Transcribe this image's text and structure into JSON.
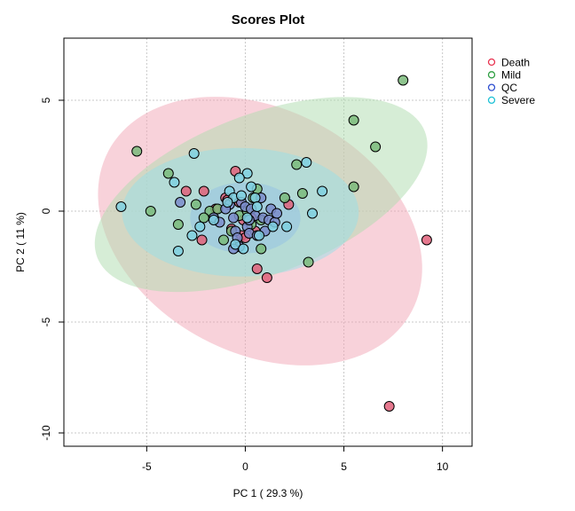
{
  "chart_data": {
    "type": "scatter",
    "title": "Scores Plot",
    "xlabel": "PC 1 ( 29.3 %)",
    "ylabel": "PC 2 ( 11 %)",
    "xlim": [
      -9.2,
      11.5
    ],
    "ylim": [
      -10.6,
      7.8
    ],
    "xticks": [
      -5,
      0,
      5,
      10
    ],
    "yticks": [
      -10,
      -5,
      0,
      5
    ],
    "grid": true,
    "legend_position": "top-right",
    "series": [
      {
        "name": "Death",
        "color": "#e8324f",
        "fill": "#e0607a",
        "ellipse_fill": "#f2a6b6",
        "ellipse": {
          "cx": 0.75,
          "cy": -0.9,
          "rx": 8.7,
          "ry": 5.5,
          "angle_deg": 27.8
        },
        "points": [
          [
            -0.5,
            1.8
          ],
          [
            -2.1,
            0.9
          ],
          [
            -3.0,
            0.9
          ],
          [
            -0.3,
            0.4
          ],
          [
            -1.0,
            0.6
          ],
          [
            0.3,
            -0.3
          ],
          [
            -0.2,
            -1.1
          ],
          [
            -0.7,
            -0.8
          ],
          [
            0.0,
            -1.2
          ],
          [
            -2.2,
            -1.3
          ],
          [
            0.6,
            -2.6
          ],
          [
            1.1,
            -3.0
          ],
          [
            2.2,
            0.3
          ],
          [
            -0.9,
            0.5
          ],
          [
            9.2,
            -1.3
          ],
          [
            7.3,
            -8.8
          ],
          [
            -1.5,
            0.1
          ],
          [
            -0.1,
            -0.4
          ],
          [
            0.5,
            -0.9
          ]
        ]
      },
      {
        "name": "Mild",
        "color": "#2a9d3e",
        "fill": "#7aba7a",
        "ellipse_fill": "#aedcae",
        "ellipse": {
          "cx": 0.8,
          "cy": 0.75,
          "rx": 8.9,
          "ry": 3.6,
          "angle_deg": -21
        },
        "points": [
          [
            -5.5,
            2.7
          ],
          [
            -3.9,
            1.7
          ],
          [
            -4.8,
            0.0
          ],
          [
            -3.4,
            -0.6
          ],
          [
            -2.5,
            0.3
          ],
          [
            -1.8,
            0.0
          ],
          [
            -2.1,
            -0.3
          ],
          [
            -1.4,
            0.1
          ],
          [
            -1.1,
            -1.3
          ],
          [
            -0.7,
            -0.9
          ],
          [
            -0.3,
            -0.2
          ],
          [
            0.4,
            0.6
          ],
          [
            0.6,
            1.0
          ],
          [
            0.8,
            -0.4
          ],
          [
            0.1,
            0.0
          ],
          [
            0.8,
            -1.7
          ],
          [
            2.0,
            0.6
          ],
          [
            2.9,
            0.8
          ],
          [
            2.6,
            2.1
          ],
          [
            5.5,
            1.1
          ],
          [
            6.6,
            2.9
          ],
          [
            5.5,
            4.1
          ],
          [
            8.0,
            5.9
          ],
          [
            3.2,
            -2.3
          ],
          [
            0.3,
            -0.6
          ]
        ]
      },
      {
        "name": "QC",
        "color": "#2f4fd0",
        "fill": "#7b8ccb",
        "ellipse_fill": "#8fa3e0",
        "ellipse": {
          "cx": 0.0,
          "cy": -0.3,
          "rx": 2.8,
          "ry": 1.6,
          "angle_deg": 0
        },
        "points": [
          [
            -3.3,
            0.4
          ],
          [
            -1.6,
            -0.3
          ],
          [
            -1.3,
            -0.5
          ],
          [
            -0.8,
            0.3
          ],
          [
            -0.6,
            -0.3
          ],
          [
            -0.5,
            -0.9
          ],
          [
            -0.4,
            -1.2
          ],
          [
            -0.3,
            -1.6
          ],
          [
            -0.2,
            0.4
          ],
          [
            0.0,
            0.2
          ],
          [
            0.1,
            -0.7
          ],
          [
            0.2,
            -1.0
          ],
          [
            0.3,
            0.1
          ],
          [
            0.5,
            -0.2
          ],
          [
            0.6,
            -1.1
          ],
          [
            0.8,
            0.6
          ],
          [
            0.9,
            -0.3
          ],
          [
            1.0,
            -0.9
          ],
          [
            1.2,
            -0.4
          ],
          [
            1.3,
            0.1
          ],
          [
            1.5,
            -0.5
          ],
          [
            1.6,
            -0.1
          ],
          [
            -0.6,
            -1.7
          ],
          [
            -1.0,
            0.1
          ],
          [
            0.2,
            -0.4
          ]
        ]
      },
      {
        "name": "Severe",
        "color": "#1ec2d6",
        "fill": "#7fd0e0",
        "ellipse_fill": "#98e0e8",
        "ellipse": {
          "cx": -0.25,
          "cy": -0.05,
          "rx": 6.0,
          "ry": 2.9,
          "angle_deg": 0
        },
        "points": [
          [
            -6.3,
            0.2
          ],
          [
            -2.6,
            2.6
          ],
          [
            -3.6,
            1.3
          ],
          [
            -2.7,
            -1.1
          ],
          [
            -3.4,
            -1.8
          ],
          [
            -2.3,
            -0.7
          ],
          [
            -1.6,
            -0.4
          ],
          [
            -0.8,
            0.9
          ],
          [
            -0.6,
            0.6
          ],
          [
            -0.2,
            0.7
          ],
          [
            0.1,
            1.7
          ],
          [
            -0.3,
            1.5
          ],
          [
            0.5,
            0.6
          ],
          [
            0.6,
            0.2
          ],
          [
            0.1,
            -0.3
          ],
          [
            -0.5,
            -1.5
          ],
          [
            -0.1,
            -1.7
          ],
          [
            0.7,
            -1.1
          ],
          [
            1.4,
            -0.7
          ],
          [
            2.1,
            -0.7
          ],
          [
            3.1,
            2.2
          ],
          [
            3.9,
            0.9
          ],
          [
            3.4,
            -0.1
          ],
          [
            0.3,
            1.1
          ],
          [
            -0.9,
            0.4
          ]
        ]
      }
    ]
  }
}
